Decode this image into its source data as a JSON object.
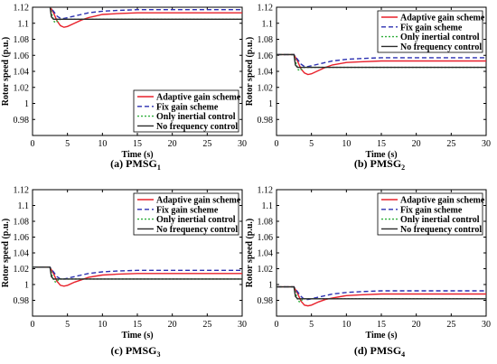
{
  "chart_data": [
    {
      "type": "line",
      "caption": "(a) PMSG",
      "caption_sub": "1",
      "xlabel": "Time (s)",
      "ylabel": "Rotor speed (p.u.)",
      "xlim": [
        0,
        30
      ],
      "ylim": [
        0.96,
        1.12
      ],
      "xticks": [
        0,
        5,
        10,
        15,
        20,
        25,
        30
      ],
      "yticks": [
        0.98,
        1,
        1.02,
        1.04,
        1.06,
        1.08,
        1.1,
        1.12
      ],
      "legend_position": "lower-right",
      "series": [
        {
          "name": "Adaptive gain scheme",
          "color": "#e8202a",
          "dash": "",
          "x": [
            0,
            2.5,
            3.0,
            3.5,
            4.0,
            4.5,
            5.0,
            6.0,
            7.0,
            8.0,
            9.0,
            10.0,
            12.0,
            15.0,
            20.0,
            25.0,
            30.0
          ],
          "y": [
            1.121,
            1.121,
            1.113,
            1.103,
            1.097,
            1.095,
            1.096,
            1.1,
            1.104,
            1.107,
            1.109,
            1.111,
            1.112,
            1.113,
            1.113,
            1.113,
            1.113
          ]
        },
        {
          "name": "Fix gain scheme",
          "color": "#2b2fb0",
          "dash": "5,3",
          "x": [
            0,
            2.5,
            3.0,
            3.5,
            4.0,
            4.5,
            5.0,
            6.0,
            7.0,
            8.0,
            10.0,
            12.0,
            15.0,
            20.0,
            25.0,
            30.0
          ],
          "y": [
            1.121,
            1.121,
            1.115,
            1.109,
            1.106,
            1.106,
            1.107,
            1.109,
            1.111,
            1.113,
            1.115,
            1.116,
            1.117,
            1.117,
            1.117,
            1.117
          ]
        },
        {
          "name": "Only inertial control",
          "color": "#2fae3b",
          "dash": "2,2",
          "x": [
            0,
            2.5,
            2.8,
            3.1,
            3.4,
            3.7,
            4.0,
            5.0,
            30.0
          ],
          "y": [
            1.121,
            1.121,
            1.11,
            1.102,
            1.101,
            1.104,
            1.105,
            1.105,
            1.105
          ]
        },
        {
          "name": "No frequency control",
          "color": "#2a2a2a",
          "dash": "",
          "x": [
            0,
            2.5,
            2.7,
            3.0,
            30.0
          ],
          "y": [
            1.121,
            1.121,
            1.108,
            1.105,
            1.105
          ]
        }
      ]
    },
    {
      "type": "line",
      "caption": "(b) PMSG",
      "caption_sub": "2",
      "xlabel": "Time (s)",
      "ylabel": "Rotor speed (p.u.)",
      "xlim": [
        0,
        30
      ],
      "ylim": [
        0.96,
        1.12
      ],
      "xticks": [
        0,
        5,
        10,
        15,
        20,
        25,
        30
      ],
      "yticks": [
        0.98,
        1,
        1.02,
        1.04,
        1.06,
        1.08,
        1.1,
        1.12
      ],
      "legend_position": "top-right",
      "series": [
        {
          "name": "Adaptive gain scheme",
          "color": "#e8202a",
          "dash": "",
          "x": [
            0,
            2.5,
            3.0,
            3.5,
            4.0,
            4.5,
            5.0,
            6.0,
            7.0,
            8.0,
            10.0,
            12.0,
            15.0,
            20.0,
            25.0,
            30.0
          ],
          "y": [
            1.061,
            1.061,
            1.053,
            1.043,
            1.038,
            1.036,
            1.037,
            1.041,
            1.045,
            1.048,
            1.051,
            1.052,
            1.053,
            1.053,
            1.053,
            1.053
          ]
        },
        {
          "name": "Fix gain scheme",
          "color": "#2b2fb0",
          "dash": "5,3",
          "x": [
            0,
            2.5,
            3.0,
            3.5,
            4.0,
            4.5,
            5.0,
            6.0,
            7.0,
            8.0,
            10.0,
            12.0,
            15.0,
            20.0,
            25.0,
            30.0
          ],
          "y": [
            1.061,
            1.061,
            1.055,
            1.049,
            1.046,
            1.046,
            1.047,
            1.049,
            1.051,
            1.053,
            1.055,
            1.056,
            1.057,
            1.057,
            1.057,
            1.057
          ]
        },
        {
          "name": "Only inertial control",
          "color": "#2fae3b",
          "dash": "2,2",
          "x": [
            0,
            2.5,
            2.8,
            3.1,
            3.4,
            3.7,
            4.0,
            5.0,
            30.0
          ],
          "y": [
            1.061,
            1.061,
            1.05,
            1.042,
            1.041,
            1.044,
            1.045,
            1.045,
            1.045
          ]
        },
        {
          "name": "No frequency control",
          "color": "#2a2a2a",
          "dash": "",
          "x": [
            0,
            2.5,
            2.7,
            3.0,
            30.0
          ],
          "y": [
            1.061,
            1.061,
            1.048,
            1.045,
            1.045
          ]
        }
      ]
    },
    {
      "type": "line",
      "caption": "(c) PMSG",
      "caption_sub": "3",
      "xlabel": "Time (s)",
      "ylabel": "Rotor speed (p.u.)",
      "xlim": [
        0,
        30
      ],
      "ylim": [
        0.96,
        1.12
      ],
      "xticks": [
        0,
        5,
        10,
        15,
        20,
        25,
        30
      ],
      "yticks": [
        0.98,
        1,
        1.02,
        1.04,
        1.06,
        1.08,
        1.1,
        1.12
      ],
      "legend_position": "top-right",
      "series": [
        {
          "name": "Adaptive gain scheme",
          "color": "#e8202a",
          "dash": "",
          "x": [
            0,
            2.5,
            3.0,
            3.5,
            4.0,
            4.5,
            5.0,
            6.0,
            7.0,
            8.0,
            10.0,
            12.0,
            15.0,
            20.0,
            25.0,
            30.0
          ],
          "y": [
            1.022,
            1.022,
            1.014,
            1.004,
            0.999,
            0.998,
            0.999,
            1.003,
            1.006,
            1.009,
            1.012,
            1.013,
            1.014,
            1.014,
            1.014,
            1.014
          ]
        },
        {
          "name": "Fix gain scheme",
          "color": "#2b2fb0",
          "dash": "5,3",
          "x": [
            0,
            2.5,
            3.0,
            3.5,
            4.0,
            4.5,
            5.0,
            6.0,
            7.0,
            8.0,
            10.0,
            12.0,
            15.0,
            20.0,
            25.0,
            30.0
          ],
          "y": [
            1.022,
            1.022,
            1.016,
            1.01,
            1.007,
            1.007,
            1.008,
            1.01,
            1.012,
            1.014,
            1.016,
            1.017,
            1.018,
            1.018,
            1.018,
            1.018
          ]
        },
        {
          "name": "Only inertial control",
          "color": "#2fae3b",
          "dash": "2,2",
          "x": [
            0,
            2.5,
            2.8,
            3.1,
            3.4,
            3.7,
            4.0,
            5.0,
            30.0
          ],
          "y": [
            1.022,
            1.022,
            1.011,
            1.004,
            1.003,
            1.006,
            1.007,
            1.007,
            1.007
          ]
        },
        {
          "name": "No frequency control",
          "color": "#2a2a2a",
          "dash": "",
          "x": [
            0,
            2.5,
            2.7,
            3.0,
            30.0
          ],
          "y": [
            1.022,
            1.022,
            1.01,
            1.007,
            1.007
          ]
        }
      ]
    },
    {
      "type": "line",
      "caption": "(d) PMSG",
      "caption_sub": "4",
      "xlabel": "Time (s)",
      "ylabel": "Rotor speed (p.u.)",
      "xlim": [
        0,
        30
      ],
      "ylim": [
        0.96,
        1.12
      ],
      "xticks": [
        0,
        5,
        10,
        15,
        20,
        25,
        30
      ],
      "yticks": [
        0.98,
        1,
        1.02,
        1.04,
        1.06,
        1.08,
        1.1,
        1.12
      ],
      "legend_position": "top-right",
      "series": [
        {
          "name": "Adaptive gain scheme",
          "color": "#e8202a",
          "dash": "",
          "x": [
            0,
            2.5,
            3.0,
            3.5,
            4.0,
            4.5,
            5.0,
            6.0,
            7.0,
            8.0,
            10.0,
            12.0,
            15.0,
            20.0,
            25.0,
            30.0
          ],
          "y": [
            0.997,
            0.997,
            0.989,
            0.979,
            0.974,
            0.973,
            0.974,
            0.978,
            0.981,
            0.983,
            0.986,
            0.987,
            0.988,
            0.988,
            0.988,
            0.988
          ]
        },
        {
          "name": "Fix gain scheme",
          "color": "#2b2fb0",
          "dash": "5,3",
          "x": [
            0,
            2.5,
            3.0,
            3.5,
            4.0,
            4.5,
            5.0,
            6.0,
            7.0,
            8.0,
            10.0,
            12.0,
            15.0,
            20.0,
            25.0,
            30.0
          ],
          "y": [
            0.997,
            0.997,
            0.991,
            0.985,
            0.981,
            0.981,
            0.982,
            0.984,
            0.986,
            0.988,
            0.99,
            0.991,
            0.992,
            0.992,
            0.992,
            0.992
          ]
        },
        {
          "name": "Only inertial control",
          "color": "#2fae3b",
          "dash": "2,2",
          "x": [
            0,
            2.5,
            2.8,
            3.1,
            3.4,
            3.7,
            4.0,
            5.0,
            30.0
          ],
          "y": [
            0.997,
            0.997,
            0.987,
            0.979,
            0.978,
            0.981,
            0.982,
            0.982,
            0.982
          ]
        },
        {
          "name": "No frequency control",
          "color": "#2a2a2a",
          "dash": "",
          "x": [
            0,
            2.5,
            2.7,
            3.0,
            30.0
          ],
          "y": [
            0.997,
            0.997,
            0.985,
            0.982,
            0.982
          ]
        }
      ]
    }
  ]
}
